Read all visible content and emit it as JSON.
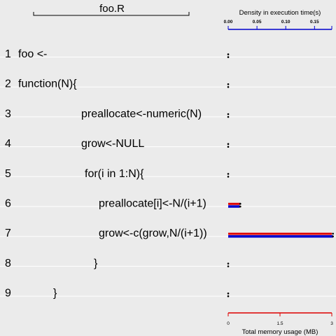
{
  "chart_data": {
    "type": "bar",
    "file_name": "foo.R",
    "lines": [
      {
        "number": "1",
        "code": "foo <-",
        "indent": 0,
        "time": 0.0,
        "memory": 0.0
      },
      {
        "number": "2",
        "code": "function(N){",
        "indent": 0,
        "time": 0.0,
        "memory": 0.0
      },
      {
        "number": "3",
        "code": "preallocate<-numeric(N)",
        "indent": 90,
        "time": 0.0,
        "memory": 0.0
      },
      {
        "number": "4",
        "code": "grow<-NULL",
        "indent": 90,
        "time": 0.0,
        "memory": 0.0
      },
      {
        "number": "5",
        "code": "for(i in 1:N){",
        "indent": 95,
        "time": 0.0,
        "memory": 0.0
      },
      {
        "number": "6",
        "code": "preallocate[i]<-N/(i+1)",
        "indent": 115,
        "time": 0.02,
        "memory": 0.35
      },
      {
        "number": "7",
        "code": "grow<-c(grow,N/(i+1))",
        "indent": 115,
        "time": 0.182,
        "memory": 3.0
      },
      {
        "number": "8",
        "code": "}",
        "indent": 108,
        "time": 0.0,
        "memory": 0.0
      },
      {
        "number": "9",
        "code": "}",
        "indent": 50,
        "time": 0.0,
        "memory": 0.0
      }
    ],
    "time_axis": {
      "label": "Density in execution time(s)",
      "ticks": [
        "0.00",
        "0.05",
        "0.10",
        "0.15"
      ],
      "tick_values": [
        0,
        0.05,
        0.1,
        0.15
      ],
      "range": [
        0,
        0.18
      ],
      "color": "#0000cc"
    },
    "memory_axis": {
      "label": "Total memory usage (MB)",
      "ticks": [
        "0",
        "1.5",
        "3"
      ],
      "tick_values": [
        0,
        1.5,
        3
      ],
      "range": [
        0,
        3
      ],
      "color": "#dd0000"
    }
  }
}
